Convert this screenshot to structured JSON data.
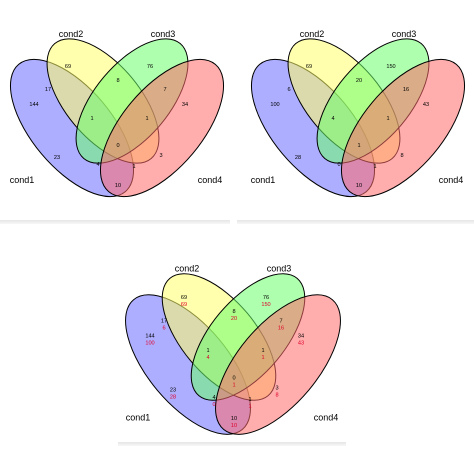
{
  "colors": {
    "cond1": "#6a6cff",
    "cond2": "#ffff6a",
    "cond3": "#6cff6c",
    "cond4": "#ff6a6a",
    "second_count": "#e0002a"
  },
  "sets": [
    "cond1",
    "cond2",
    "cond3",
    "cond4"
  ],
  "panels": [
    {
      "id": "top-left",
      "counts": {
        "c1": "144",
        "c2": "69",
        "c3": "76",
        "c4": "34",
        "c1c2": "17",
        "c2c3": "8",
        "c3c4": "7",
        "c1c3": "23",
        "c2c4": "3",
        "c1c4": "10",
        "c1c2c3": "1",
        "c2c3c4": "1",
        "c1c3c4": "1",
        "c1c2c4": "4",
        "all": "0"
      }
    },
    {
      "id": "top-right",
      "counts": {
        "c1": "100",
        "c2": "69",
        "c3": "150",
        "c4": "43",
        "c1c2": "6",
        "c2c3": "20",
        "c3c4": "16",
        "c1c3": "28",
        "c2c4": "8",
        "c1c4": "10",
        "c1c2c3": "4",
        "c2c3c4": "1",
        "c1c3c4": "1",
        "c1c2c4": "0",
        "all": "1"
      }
    },
    {
      "id": "bottom-combined",
      "counts": {
        "c1": "144",
        "c2": "69",
        "c3": "76",
        "c4": "34",
        "c1c2": "17",
        "c2c3": "8",
        "c3c4": "7",
        "c1c3": "23",
        "c2c4": "3",
        "c1c4": "10",
        "c1c2c3": "1",
        "c2c3c4": "1",
        "c1c3c4": "1",
        "c1c2c4": "4",
        "all": "0"
      },
      "counts2": {
        "c1": "100",
        "c2": "69",
        "c3": "150",
        "c4": "43",
        "c1c2": "6",
        "c2c3": "20",
        "c3c4": "16",
        "c1c3": "28",
        "c2c4": "8",
        "c1c4": "10",
        "c1c2c3": "4",
        "c2c3c4": "1",
        "c1c3c4": "1",
        "c1c2c4": "0",
        "all": "1"
      }
    }
  ]
}
